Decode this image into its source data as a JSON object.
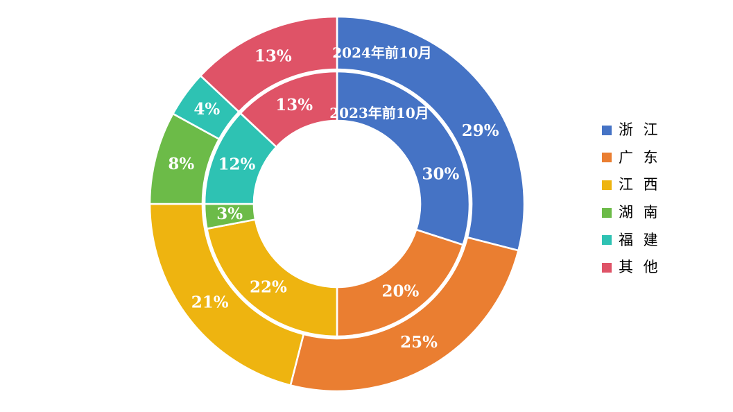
{
  "page": {
    "background": "#ffffff"
  },
  "chart_data": {
    "type": "pie",
    "subtype": "double-ring-donut",
    "title": "",
    "categories": [
      "浙江",
      "广东",
      "江西",
      "湖南",
      "福建",
      "其他"
    ],
    "colors": [
      "#4573C5",
      "#EA7E31",
      "#EEB410",
      "#6CBB48",
      "#2EC2B3",
      "#DF5367"
    ],
    "series": [
      {
        "name": "2024年前10月",
        "ring": "outer",
        "values": [
          29,
          25,
          21,
          8,
          4,
          13
        ],
        "labels": [
          "29%",
          "25%",
          "21%",
          "8%",
          "4%",
          "13%"
        ]
      },
      {
        "name": "2023年前10月",
        "ring": "inner",
        "values": [
          30,
          20,
          22,
          3,
          12,
          13
        ],
        "labels": [
          "30%",
          "20%",
          "22%",
          "3%",
          "12%",
          "13%"
        ]
      }
    ],
    "legend": {
      "position": "right",
      "entries": [
        {
          "label": "浙 江"
        },
        {
          "label": "广 东"
        },
        {
          "label": "江 西"
        },
        {
          "label": "湖 南"
        },
        {
          "label": "福 建"
        },
        {
          "label": "其 他"
        }
      ]
    },
    "layout": {
      "center": [
        486,
        294
      ],
      "outer_ring_radii": [
        194,
        270
      ],
      "inner_ring_radii": [
        120,
        191
      ],
      "start_angle": 0,
      "clockwise": true,
      "separator_color": "#ffffff",
      "separator_width": 2.6,
      "slice_label_font_size": 23,
      "name_label_font_size": 20,
      "label_color": "#ffffff",
      "label_angle_overrides": {
        "outer_0": 63,
        "inner_0": 74
      },
      "series_name_positions": [
        [
          551,
          76
        ],
        [
          547,
          163
        ]
      ]
    }
  }
}
